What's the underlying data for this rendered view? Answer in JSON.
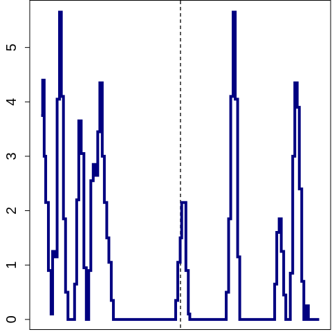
{
  "chart_data": {
    "type": "line",
    "style": "step",
    "title": "",
    "xlabel": "",
    "ylabel": "",
    "ylim": [
      -0.18,
      5.86
    ],
    "xlim": [
      0,
      100
    ],
    "yticks": [
      0,
      1,
      2,
      3,
      4,
      5
    ],
    "ytick_labels": [
      "0",
      "1",
      "2",
      "3",
      "4",
      "5"
    ],
    "xticks_visible": false,
    "grid": false,
    "legend": "none",
    "line_color": "#000080",
    "reference_line": {
      "x": 50.1,
      "style": "dashed",
      "color": "#000000"
    },
    "series": [
      {
        "x": [
          3.8,
          4.3,
          4.8,
          5.3,
          6.2,
          7.1,
          7.6,
          8.2,
          9.1,
          9.9,
          10.5,
          11.2,
          11.9,
          12.7,
          13.4,
          14.1,
          14.9,
          15.6,
          16.3,
          17.1,
          18.0,
          18.8,
          19.6,
          20.3,
          21.1,
          21.8,
          22.6,
          23.3,
          24.1,
          24.8,
          25.6,
          26.3,
          27.1,
          27.8,
          28.6,
          29.3,
          30.1,
          30.8,
          31.6,
          32.3,
          33.1,
          33.8,
          34.6,
          35.3,
          36.1,
          36.8,
          37.6,
          38.3,
          39.1,
          40.0,
          48.5,
          49.2,
          50.0,
          50.5,
          51.2,
          51.9,
          52.7,
          53.2,
          53.7,
          54.2,
          54.8,
          55.2,
          55.7,
          56.1,
          56.6,
          57.3,
          65.3,
          66.1,
          66.8,
          67.6,
          68.3,
          69.1,
          69.8,
          70.6,
          71.4,
          72.1,
          72.9,
          73.6,
          74.3,
          81.4,
          82.1,
          82.9,
          83.6,
          84.4,
          85.1,
          85.9,
          86.6,
          87.4,
          88.1,
          88.9,
          89.6,
          90.4,
          91.1,
          91.9,
          92.6,
          93.4,
          94.1,
          94.9,
          95.6,
          96.2
        ],
        "y": [
          3.75,
          4.4,
          3.0,
          2.15,
          0.9,
          0.1,
          1.25,
          1.15,
          4.05,
          5.65,
          4.1,
          1.85,
          0.5,
          0.0,
          0.0,
          0.0,
          0.65,
          2.2,
          3.65,
          3.05,
          0.95,
          0.0,
          0.9,
          2.55,
          2.85,
          2.65,
          3.45,
          4.35,
          3.0,
          2.15,
          1.5,
          1.05,
          0.35,
          0.0,
          0.0,
          0.0,
          0.0,
          0.0,
          0.0,
          0.0,
          0.0,
          0.0,
          0.0,
          0.0,
          0.0,
          0.0,
          0.0,
          0.0,
          0.0,
          0.0,
          0.35,
          1.05,
          1.5,
          2.15,
          2.15,
          0.9,
          0.1,
          0.0,
          0.0,
          0.0,
          0.0,
          0.0,
          0.0,
          0.0,
          0.0,
          0.0,
          0.5,
          1.85,
          4.1,
          5.65,
          4.05,
          1.15,
          0.0,
          0.0,
          0.0,
          0.0,
          0.0,
          0.0,
          0.0,
          0.65,
          1.6,
          1.85,
          1.25,
          0.45,
          0.0,
          0.0,
          0.85,
          3.0,
          4.35,
          3.9,
          2.4,
          0.7,
          0.0,
          0.25,
          0.0,
          0.0,
          0.0,
          0.0,
          0.0,
          0.0
        ]
      }
    ]
  }
}
